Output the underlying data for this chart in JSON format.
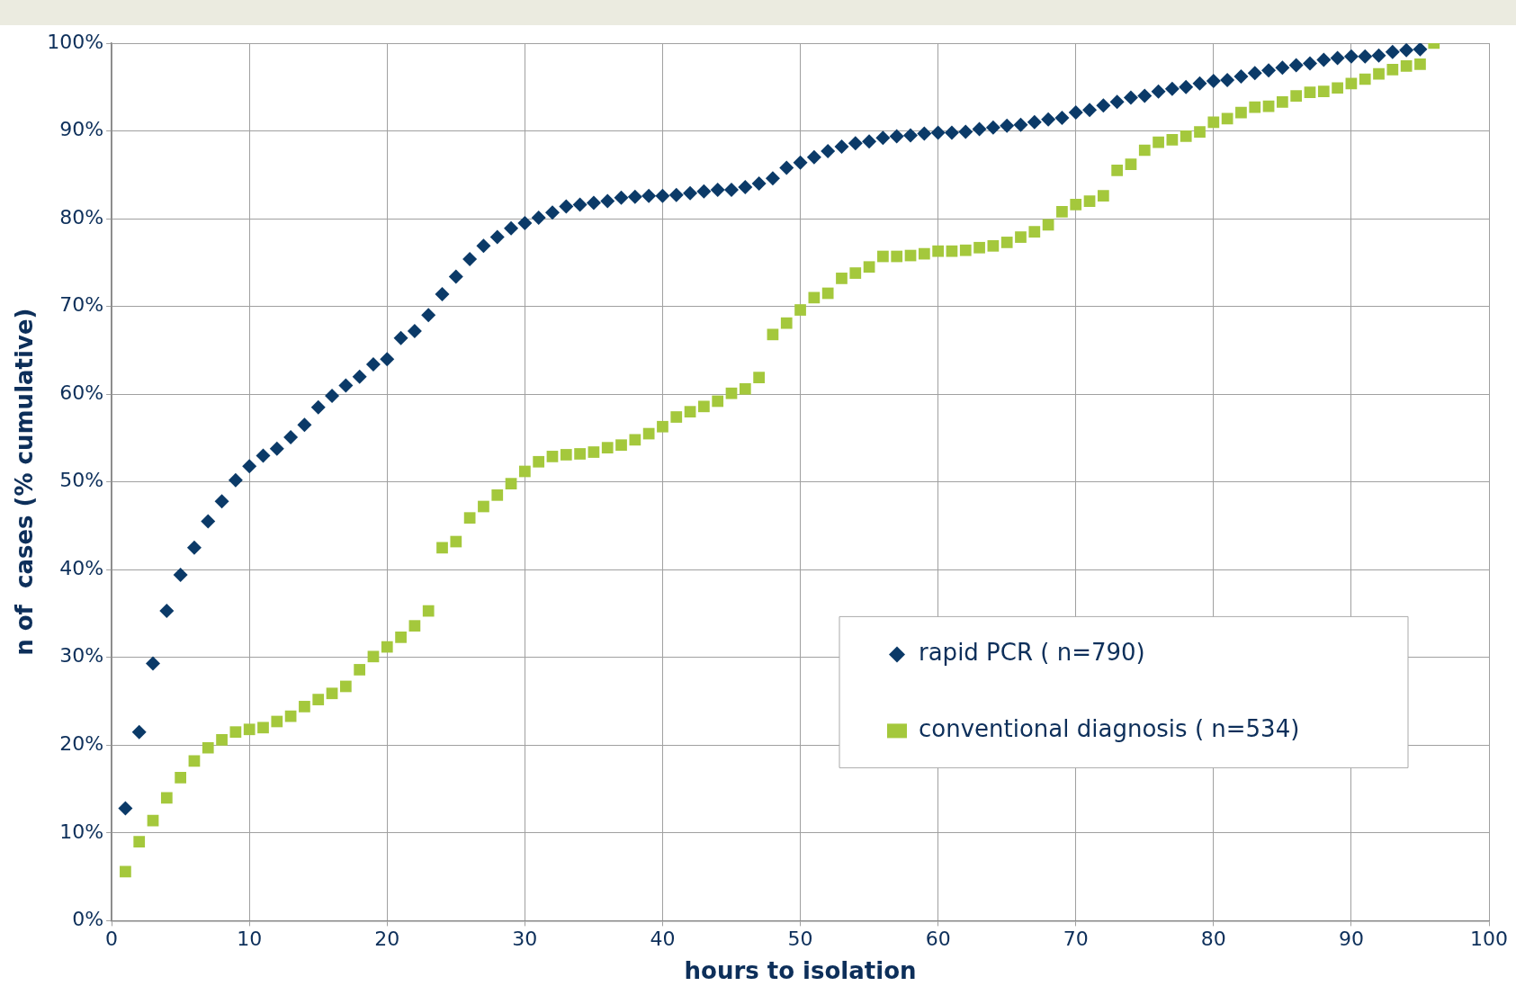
{
  "chart_data": {
    "type": "scatter",
    "xlabel": "hours to isolation",
    "ylabel": "n of  cases (% cumulative)",
    "xlim": [
      0,
      100
    ],
    "xticks": [
      0,
      10,
      20,
      30,
      40,
      50,
      60,
      70,
      80,
      90,
      100
    ],
    "ylim": [
      0,
      100
    ],
    "yticks": [
      {
        "value": 0,
        "label": "0%"
      },
      {
        "value": 10,
        "label": "10%"
      },
      {
        "value": 20,
        "label": "20%"
      },
      {
        "value": 30,
        "label": "30%"
      },
      {
        "value": 40,
        "label": "40%"
      },
      {
        "value": 50,
        "label": "50%"
      },
      {
        "value": 60,
        "label": "60%"
      },
      {
        "value": 70,
        "label": "70%"
      },
      {
        "value": 80,
        "label": "80%"
      },
      {
        "value": 90,
        "label": "90%"
      },
      {
        "value": 100,
        "label": "100%"
      }
    ],
    "grid": true,
    "legend": "bottom right",
    "series": [
      {
        "name": "rapid PCR ( n=790)",
        "color": "#0b3a68",
        "marker": "diamond",
        "x": [
          1,
          2,
          3,
          4,
          5,
          6,
          7,
          8,
          9,
          10,
          11,
          12,
          13,
          14,
          15,
          16,
          17,
          18,
          19,
          20,
          21,
          22,
          23,
          24,
          25,
          26,
          27,
          28,
          29,
          30,
          31,
          32,
          33,
          34,
          35,
          36,
          37,
          38,
          39,
          40,
          41,
          42,
          43,
          44,
          45,
          46,
          47,
          48,
          49,
          50,
          51,
          52,
          53,
          54,
          55,
          56,
          57,
          58,
          59,
          60,
          61,
          62,
          63,
          64,
          65,
          66,
          67,
          68,
          69,
          70,
          71,
          72,
          73,
          74,
          75,
          76,
          77,
          78,
          79,
          80,
          81,
          82,
          83,
          84,
          85,
          86,
          87,
          88,
          89,
          90,
          91,
          92,
          93,
          94,
          95
        ],
        "values": [
          12.8,
          21.5,
          29.3,
          35.3,
          39.4,
          42.5,
          45.5,
          47.8,
          50.2,
          51.8,
          53.0,
          53.8,
          55.1,
          56.5,
          58.5,
          59.8,
          61.0,
          62.0,
          63.4,
          64.0,
          66.4,
          67.2,
          69.0,
          71.4,
          73.4,
          75.4,
          76.9,
          77.9,
          78.9,
          79.5,
          80.1,
          80.7,
          81.4,
          81.6,
          81.8,
          82.0,
          82.4,
          82.5,
          82.6,
          82.6,
          82.7,
          82.9,
          83.1,
          83.3,
          83.3,
          83.6,
          84.0,
          84.6,
          85.8,
          86.4,
          87.0,
          87.7,
          88.2,
          88.6,
          88.8,
          89.2,
          89.4,
          89.5,
          89.7,
          89.8,
          89.8,
          89.9,
          90.2,
          90.4,
          90.6,
          90.7,
          91.0,
          91.3,
          91.5,
          92.1,
          92.4,
          92.9,
          93.3,
          93.8,
          94.0,
          94.5,
          94.8,
          95.0,
          95.4,
          95.7,
          95.8,
          96.2,
          96.6,
          96.9,
          97.2,
          97.5,
          97.7,
          98.1,
          98.3,
          98.5,
          98.5,
          98.6,
          99.0,
          99.2,
          99.3
        ]
      },
      {
        "name": "conventional diagnosis ( n=534)",
        "color": "#a4c83c",
        "marker": "square",
        "x": [
          1,
          2,
          3,
          4,
          5,
          6,
          7,
          8,
          9,
          10,
          11,
          12,
          13,
          14,
          15,
          16,
          17,
          18,
          19,
          20,
          21,
          22,
          23,
          24,
          25,
          26,
          27,
          28,
          29,
          30,
          31,
          32,
          33,
          34,
          35,
          36,
          37,
          38,
          39,
          40,
          41,
          42,
          43,
          44,
          45,
          46,
          47,
          48,
          49,
          50,
          51,
          52,
          53,
          54,
          55,
          56,
          57,
          58,
          59,
          60,
          61,
          62,
          63,
          64,
          65,
          66,
          67,
          68,
          69,
          70,
          71,
          72,
          73,
          74,
          75,
          76,
          77,
          78,
          79,
          80,
          81,
          82,
          83,
          84,
          85,
          86,
          87,
          88,
          89,
          90,
          91,
          92,
          93,
          94,
          95,
          96
        ],
        "values": [
          5.6,
          9.0,
          11.4,
          14.0,
          16.3,
          18.2,
          19.7,
          20.6,
          21.5,
          21.8,
          22.0,
          22.7,
          23.3,
          24.4,
          25.2,
          25.9,
          26.7,
          28.6,
          30.1,
          31.2,
          32.3,
          33.6,
          35.3,
          42.5,
          43.2,
          45.9,
          47.2,
          48.5,
          49.8,
          51.2,
          52.3,
          52.9,
          53.1,
          53.2,
          53.4,
          53.9,
          54.2,
          54.8,
          55.5,
          56.3,
          57.4,
          58.0,
          58.6,
          59.2,
          60.1,
          60.6,
          61.9,
          66.8,
          68.1,
          69.6,
          71.0,
          71.5,
          73.2,
          73.8,
          74.5,
          75.7,
          75.7,
          75.8,
          76.0,
          76.3,
          76.3,
          76.4,
          76.7,
          76.9,
          77.3,
          77.9,
          78.5,
          79.3,
          80.8,
          81.6,
          82.0,
          82.6,
          85.5,
          86.2,
          87.8,
          88.7,
          89.0,
          89.4,
          89.9,
          91.0,
          91.4,
          92.1,
          92.7,
          92.8,
          93.3,
          94.0,
          94.4,
          94.5,
          94.9,
          95.4,
          95.9,
          96.5,
          97.0,
          97.4,
          97.6,
          100
        ]
      }
    ]
  }
}
